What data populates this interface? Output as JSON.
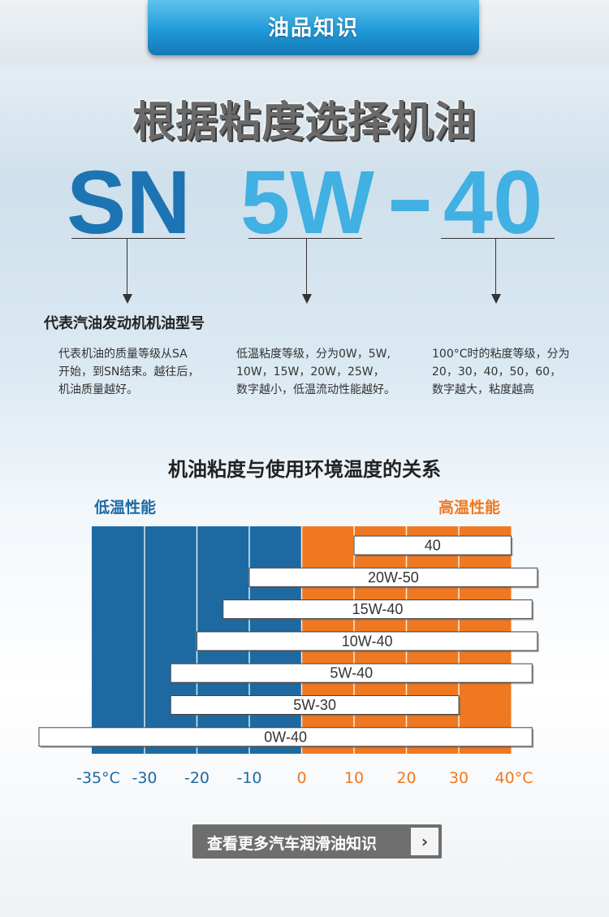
{
  "header": {
    "title": "油品知识"
  },
  "main_title": "根据粘度选择机油",
  "codes": {
    "grade": "SN",
    "low": "5W",
    "high": "40"
  },
  "descriptions": {
    "grade_heading": "代表汽油发动机机油型号",
    "grade_text": [
      "代表机油的质量等级从SA",
      "开始，到SN结束。越往后，",
      "机油质量越好。"
    ],
    "low_text": [
      "低温粘度等级，分为0W，5W,",
      "10W，15W，20W，25W，",
      "数字越小，低温流动性能越好。"
    ],
    "high_text": [
      "100°C时的粘度等级，分为",
      "20，30，40，50，60，",
      "数字越大，粘度越高"
    ]
  },
  "section_title": "机油粘度与使用环境温度的关系",
  "low_label": "低温性能",
  "high_label": "高温性能",
  "chart_data": {
    "type": "bar",
    "orientation": "horizontal-range",
    "x_unit": "°C",
    "x_ticks": [
      -35,
      -30,
      -20,
      -10,
      0,
      10,
      20,
      30,
      40
    ],
    "x_tick_labels": [
      "-35°C",
      "-30",
      "-20",
      "-10",
      "0",
      "10",
      "20",
      "30",
      "40°C"
    ],
    "bands": [
      {
        "from": -35,
        "to": 0,
        "color": "#1d6aa3"
      },
      {
        "from": 0,
        "to": 40,
        "color": "#f07820"
      }
    ],
    "ranges": [
      {
        "label": "40",
        "from": 10,
        "to": 40
      },
      {
        "label": "20W-50",
        "from": -10,
        "to": 45
      },
      {
        "label": "15W-40",
        "from": -15,
        "to": 44
      },
      {
        "label": "10W-40",
        "from": -20,
        "to": 45
      },
      {
        "label": "5W-40",
        "from": -25,
        "to": 44
      },
      {
        "label": "5W-30",
        "from": -25,
        "to": 30
      },
      {
        "label": "0W-40",
        "from": -40,
        "to": 44
      }
    ]
  },
  "button": {
    "label": "查看更多汽车润滑油知识",
    "arrow": "›"
  },
  "colors": {
    "low": "#1d6aa3",
    "high": "#f07820",
    "accent": "#41b0e3"
  }
}
